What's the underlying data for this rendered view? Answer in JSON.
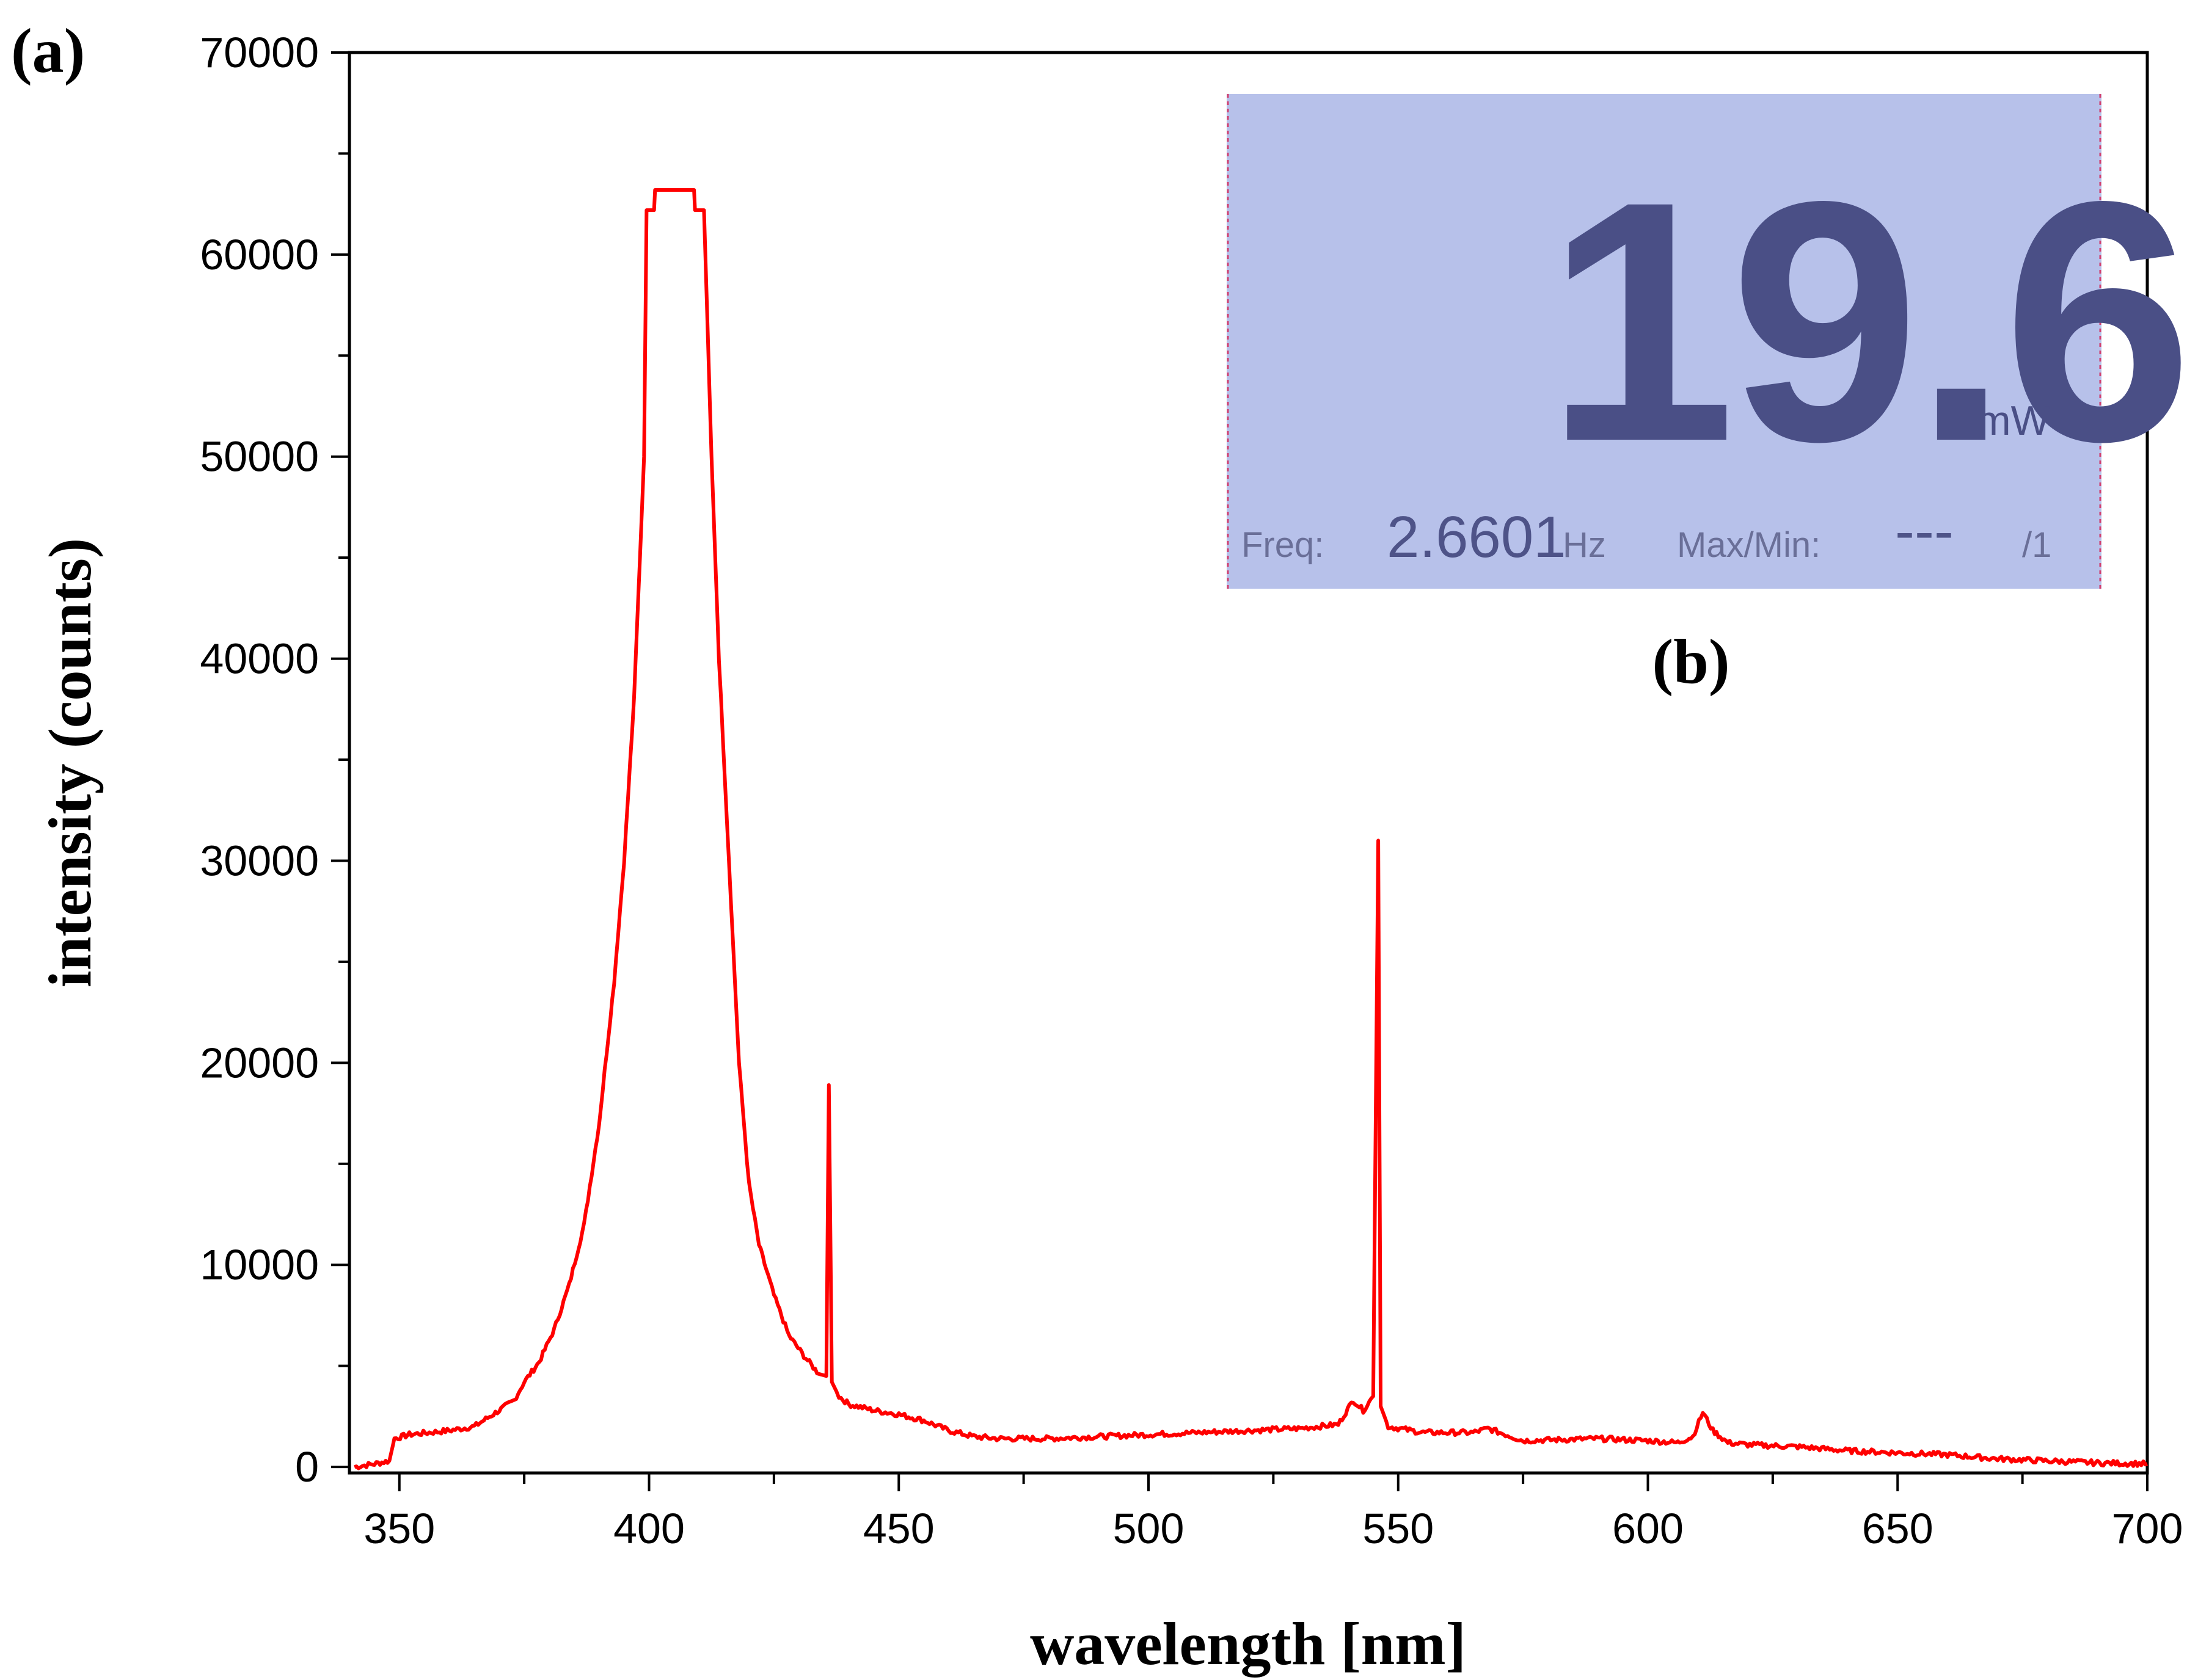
{
  "panel_labels": {
    "a": "(a)",
    "b": "(b)"
  },
  "colors": {
    "series": "#ff0000",
    "axis": "#000000",
    "lcd_bg": "#aeb8e6",
    "lcd_text": "#4a4f86"
  },
  "inset": {
    "reading": "19.6",
    "unit": "mW",
    "freq_label": "Freq:",
    "freq_value": "2.6601",
    "freq_unit": "Hz",
    "maxmin_label": "Max/Min:",
    "maxmin_value": "---",
    "maxmin_suffix": "/1"
  },
  "chart_data": {
    "type": "line",
    "xlabel": "wavelength [nm]",
    "ylabel": "intensity (counts)",
    "xlim": [
      340,
      700
    ],
    "ylim": [
      -300,
      70000
    ],
    "xticks": [
      350,
      400,
      450,
      500,
      550,
      600,
      650,
      700
    ],
    "yticks": [
      0,
      10000,
      20000,
      30000,
      40000,
      50000,
      60000,
      70000
    ],
    "grid": false,
    "legend": "none",
    "series": [
      {
        "points": [
          [
            341,
            0
          ],
          [
            345,
            150
          ],
          [
            348,
            300
          ],
          [
            349,
            1400
          ],
          [
            352,
            1600
          ],
          [
            356,
            1700
          ],
          [
            360,
            1800
          ],
          [
            365,
            2000
          ],
          [
            370,
            2800
          ],
          [
            373,
            3300
          ],
          [
            375,
            4200
          ],
          [
            378,
            5200
          ],
          [
            381,
            6800
          ],
          [
            384,
            9000
          ],
          [
            387,
            12000
          ],
          [
            390,
            17000
          ],
          [
            393,
            24000
          ],
          [
            395,
            30000
          ],
          [
            397,
            38000
          ],
          [
            399,
            50000
          ],
          [
            399.5,
            62200
          ],
          [
            401,
            62200
          ],
          [
            401.2,
            63200
          ],
          [
            409,
            63200
          ],
          [
            409.2,
            62200
          ],
          [
            411,
            62200
          ],
          [
            412.5,
            50000
          ],
          [
            414,
            40000
          ],
          [
            416,
            30000
          ],
          [
            418,
            20000
          ],
          [
            420,
            14000
          ],
          [
            422,
            11000
          ],
          [
            425,
            8500
          ],
          [
            428,
            6500
          ],
          [
            431,
            5500
          ],
          [
            434,
            4600
          ],
          [
            435.5,
            4500
          ],
          [
            436,
            18900
          ],
          [
            436.6,
            4200
          ],
          [
            438,
            3500
          ],
          [
            440,
            3100
          ],
          [
            445,
            2800
          ],
          [
            450,
            2600
          ],
          [
            455,
            2300
          ],
          [
            460,
            1800
          ],
          [
            465,
            1500
          ],
          [
            470,
            1400
          ],
          [
            480,
            1400
          ],
          [
            490,
            1500
          ],
          [
            500,
            1600
          ],
          [
            510,
            1700
          ],
          [
            520,
            1800
          ],
          [
            530,
            1900
          ],
          [
            538,
            2100
          ],
          [
            541,
            3300
          ],
          [
            543,
            2800
          ],
          [
            545,
            3500
          ],
          [
            545.6,
            20000
          ],
          [
            546,
            31000
          ],
          [
            546.5,
            3000
          ],
          [
            548,
            2000
          ],
          [
            555,
            1700
          ],
          [
            565,
            1700
          ],
          [
            568,
            1900
          ],
          [
            575,
            1300
          ],
          [
            590,
            1400
          ],
          [
            600,
            1300
          ],
          [
            606,
            1200
          ],
          [
            609,
            1500
          ],
          [
            611,
            2700
          ],
          [
            613,
            1800
          ],
          [
            616,
            1200
          ],
          [
            620,
            1100
          ],
          [
            630,
            1000
          ],
          [
            640,
            800
          ],
          [
            650,
            700
          ],
          [
            660,
            600
          ],
          [
            670,
            400
          ],
          [
            680,
            300
          ],
          [
            690,
            200
          ],
          [
            700,
            150
          ]
        ]
      }
    ]
  }
}
